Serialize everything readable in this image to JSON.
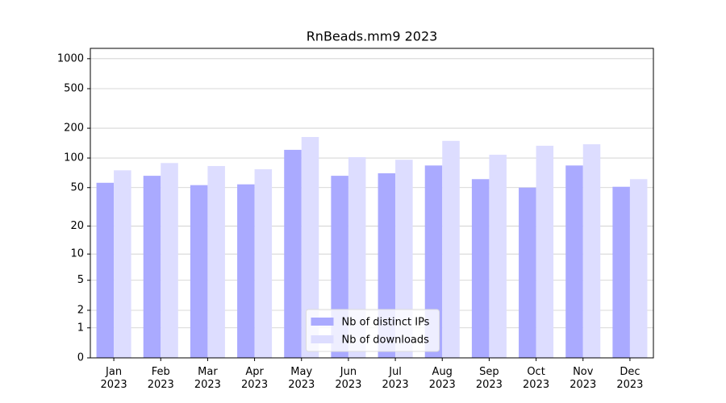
{
  "chart_data": {
    "type": "bar",
    "title": "RnBeads.mm9 2023",
    "categories": [
      "Jan\n2023",
      "Feb\n2023",
      "Mar\n2023",
      "Apr\n2023",
      "May\n2023",
      "Jun\n2023",
      "Jul\n2023",
      "Aug\n2023",
      "Sep\n2023",
      "Oct\n2023",
      "Nov\n2023",
      "Dec\n2023"
    ],
    "series": [
      {
        "name": "Nb of distinct IPs",
        "color": "#aaaaff",
        "values": [
          56,
          66,
          53,
          54,
          121,
          66,
          70,
          84,
          61,
          50,
          84,
          51
        ]
      },
      {
        "name": "Nb of downloads",
        "color": "#ddddff",
        "values": [
          75,
          89,
          83,
          77,
          163,
          102,
          96,
          149,
          108,
          133,
          138,
          61
        ]
      }
    ],
    "yscale": "log1p",
    "ylim": [
      0,
      1270
    ],
    "yticks": [
      0,
      1,
      2,
      5,
      10,
      20,
      50,
      100,
      200,
      500,
      1000
    ],
    "grid": true,
    "legend": "lower center"
  }
}
